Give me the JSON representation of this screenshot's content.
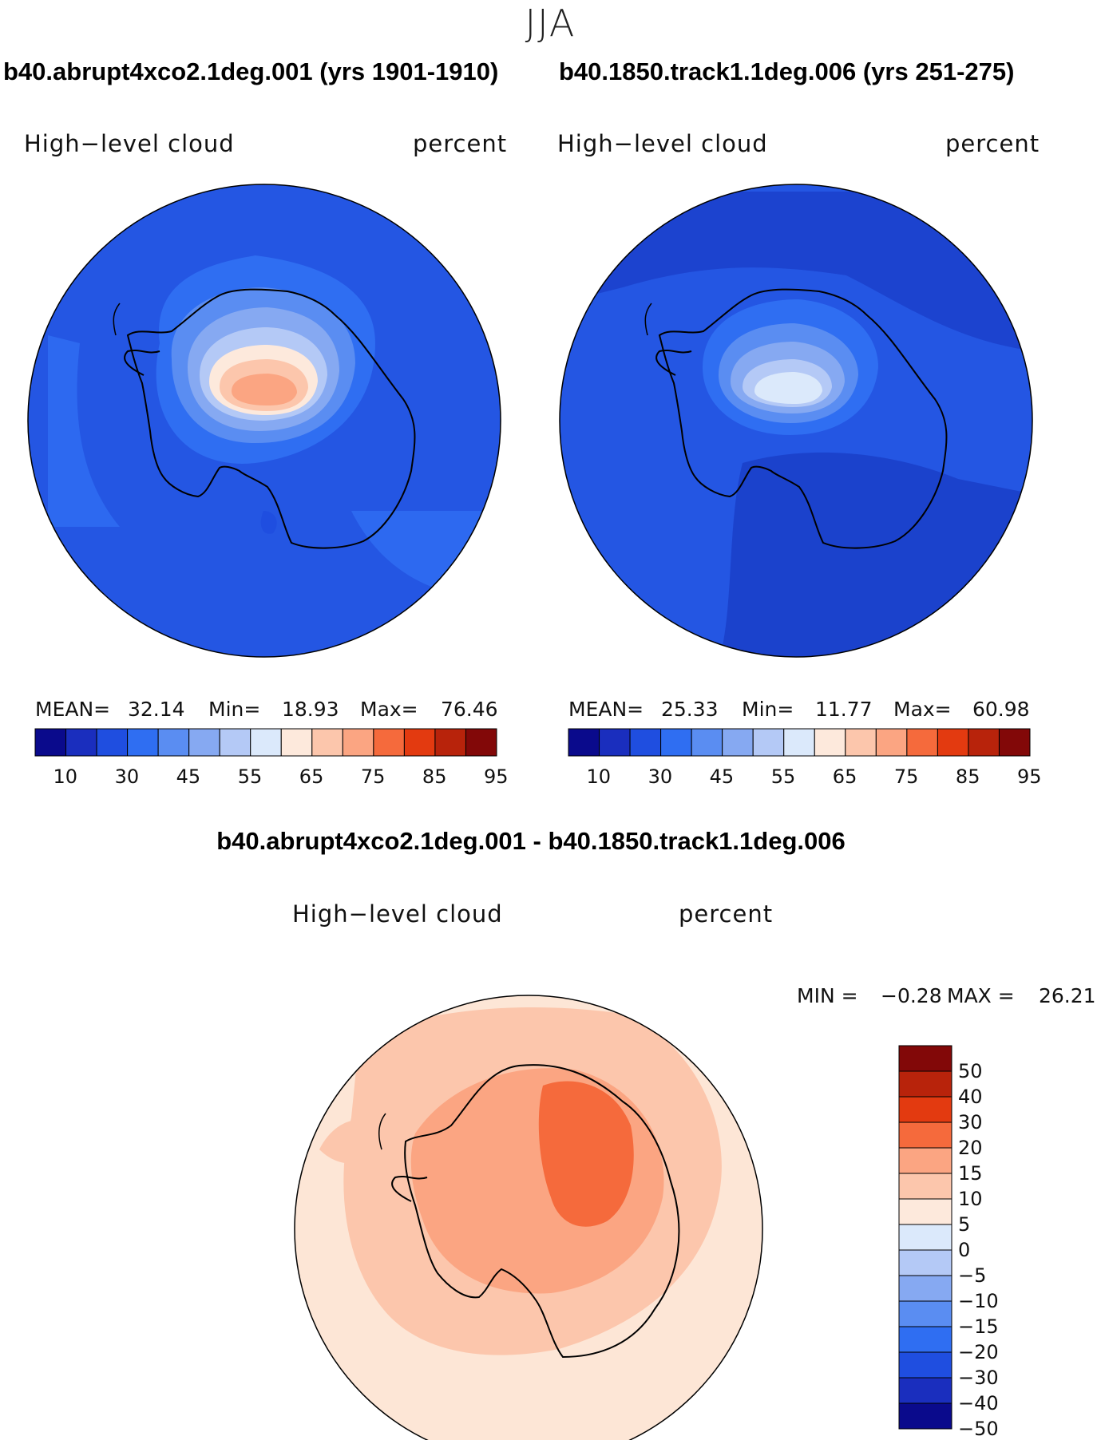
{
  "season": "JJA",
  "panels": [
    {
      "case_title": "b40.abrupt4xco2.1deg.001 (yrs 1901-1910)",
      "variable": "High−level cloud",
      "units": "percent",
      "mean_label": "MEAN=",
      "mean_value": "32.14",
      "min_label": "Min=",
      "min_value": "18.93",
      "max_label": "Max=",
      "max_value": "76.46"
    },
    {
      "case_title": "b40.1850.track1.1deg.006 (yrs 251-275)",
      "variable": "High−level cloud",
      "units": "percent",
      "mean_label": "MEAN=",
      "mean_value": "25.33",
      "min_label": "Min=",
      "min_value": "11.77",
      "max_label": "Max=",
      "max_value": "60.98"
    }
  ],
  "diff_panel": {
    "title": "b40.abrupt4xco2.1deg.001 - b40.1850.track1.1deg.006",
    "variable": "High−level cloud",
    "units": "percent",
    "min_label": "MIN =",
    "min_value": "−0.28",
    "max_label": "MAX =",
    "max_value": "26.21"
  },
  "colors": {
    "abs_scale": [
      "#0a0a8c",
      "#1a2ebe",
      "#1f4ee0",
      "#2f6ef2",
      "#5a8df2",
      "#86a9f2",
      "#b4c9f6",
      "#dbe9fb",
      "#fde9dc",
      "#fcc6ac",
      "#fba582",
      "#f56a3c",
      "#e33a10",
      "#b8230b",
      "#820808"
    ],
    "diff_scale": [
      "#0a0a8c",
      "#1a2ebe",
      "#1f4ee0",
      "#2f6ef2",
      "#5a8df2",
      "#86a9f2",
      "#b4c9f6",
      "#dbe9fb",
      "#fde9dc",
      "#fcc6ac",
      "#fba582",
      "#f56a3c",
      "#e33a10",
      "#b8230b",
      "#820808"
    ],
    "ocean_abs_1": "#2456e3",
    "ocean_abs_2": "#2456e3",
    "ocean_diff": "#fde6d6"
  },
  "chart_data": [
    {
      "type": "contour-map",
      "projection": "south polar stereographic",
      "title": "b40.abrupt4xco2.1deg.001 (yrs 1901-1910)",
      "variable": "High-level cloud",
      "units": "percent",
      "mean": 32.14,
      "min": 18.93,
      "max": 76.46,
      "contour_levels": [
        10,
        30,
        45,
        55,
        65,
        75,
        85,
        95
      ],
      "colorbar_ticks": [
        "10",
        "30",
        "45",
        "55",
        "65",
        "75",
        "85",
        "95"
      ]
    },
    {
      "type": "contour-map",
      "projection": "south polar stereographic",
      "title": "b40.1850.track1.1deg.006 (yrs 251-275)",
      "variable": "High-level cloud",
      "units": "percent",
      "mean": 25.33,
      "min": 11.77,
      "max": 60.98,
      "contour_levels": [
        10,
        30,
        45,
        55,
        65,
        75,
        85,
        95
      ],
      "colorbar_ticks": [
        "10",
        "30",
        "45",
        "55",
        "65",
        "75",
        "85",
        "95"
      ]
    },
    {
      "type": "contour-map",
      "projection": "south polar stereographic",
      "title": "b40.abrupt4xco2.1deg.001 - b40.1850.track1.1deg.006",
      "variable": "High-level cloud",
      "units": "percent",
      "min": -0.28,
      "max": 26.21,
      "contour_levels": [
        -50,
        -40,
        -30,
        -20,
        -15,
        -10,
        -5,
        0,
        5,
        10,
        15,
        20,
        30,
        40,
        50
      ],
      "colorbar_ticks": [
        "50",
        "40",
        "30",
        "20",
        "15",
        "10",
        "5",
        "0",
        "−5",
        "−10",
        "−15",
        "−20",
        "−30",
        "−40",
        "−50"
      ]
    }
  ]
}
